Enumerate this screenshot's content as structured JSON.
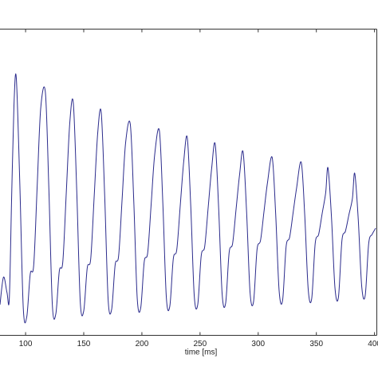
{
  "chart_data": {
    "type": "line",
    "xlabel": "time [ms]",
    "xlim": [
      78,
      403
    ],
    "xticks": [
      100,
      150,
      200,
      250,
      300,
      350,
      400
    ],
    "ylim": [
      0,
      1
    ],
    "color": "#2b2b8c",
    "x": [
      78,
      81,
      84,
      86,
      88,
      90,
      92,
      95,
      98,
      101,
      104,
      107,
      110,
      113,
      117,
      120,
      123,
      126,
      129,
      132,
      135,
      138,
      141,
      144,
      147,
      150,
      153,
      156,
      159,
      162,
      165,
      168,
      171,
      174,
      177,
      180,
      183,
      186,
      190,
      193,
      196,
      199,
      202,
      205,
      208,
      211,
      215,
      218,
      221,
      224,
      227,
      230,
      233,
      236,
      239,
      242,
      245,
      248,
      251,
      254,
      257,
      260,
      263,
      266,
      269,
      272,
      275,
      278,
      281,
      284,
      287,
      290,
      293,
      296,
      299,
      302,
      305,
      308,
      312,
      315,
      318,
      321,
      324,
      327,
      330,
      333,
      337,
      340,
      343,
      346,
      349,
      352,
      355,
      358,
      360,
      363,
      366,
      369,
      372,
      375,
      378,
      381,
      383,
      386,
      389,
      392,
      395,
      398,
      401
    ],
    "values": [
      0.1,
      0.19,
      0.14,
      0.12,
      0.45,
      0.75,
      0.841,
      0.5,
      0.09,
      0.06,
      0.2,
      0.23,
      0.49,
      0.741,
      0.794,
      0.48,
      0.1,
      0.07,
      0.21,
      0.24,
      0.467,
      0.694,
      0.76,
      0.47,
      0.11,
      0.08,
      0.22,
      0.25,
      0.455,
      0.66,
      0.729,
      0.457,
      0.115,
      0.085,
      0.23,
      0.26,
      0.445,
      0.629,
      0.69,
      0.44,
      0.12,
      0.09,
      0.24,
      0.27,
      0.43,
      0.59,
      0.669,
      0.432,
      0.125,
      0.095,
      0.25,
      0.28,
      0.425,
      0.569,
      0.646,
      0.423,
      0.13,
      0.1,
      0.26,
      0.29,
      0.418,
      0.546,
      0.625,
      0.415,
      0.135,
      0.105,
      0.27,
      0.3,
      0.413,
      0.525,
      0.599,
      0.405,
      0.14,
      0.11,
      0.28,
      0.31,
      0.405,
      0.499,
      0.581,
      0.398,
      0.145,
      0.115,
      0.29,
      0.32,
      0.4,
      0.481,
      0.565,
      0.393,
      0.15,
      0.12,
      0.3,
      0.33,
      0.398,
      0.465,
      0.547,
      0.386,
      0.155,
      0.125,
      0.31,
      0.34,
      0.394,
      0.447,
      0.529,
      0.38,
      0.16,
      0.13,
      0.3,
      0.33,
      0.35
    ]
  }
}
